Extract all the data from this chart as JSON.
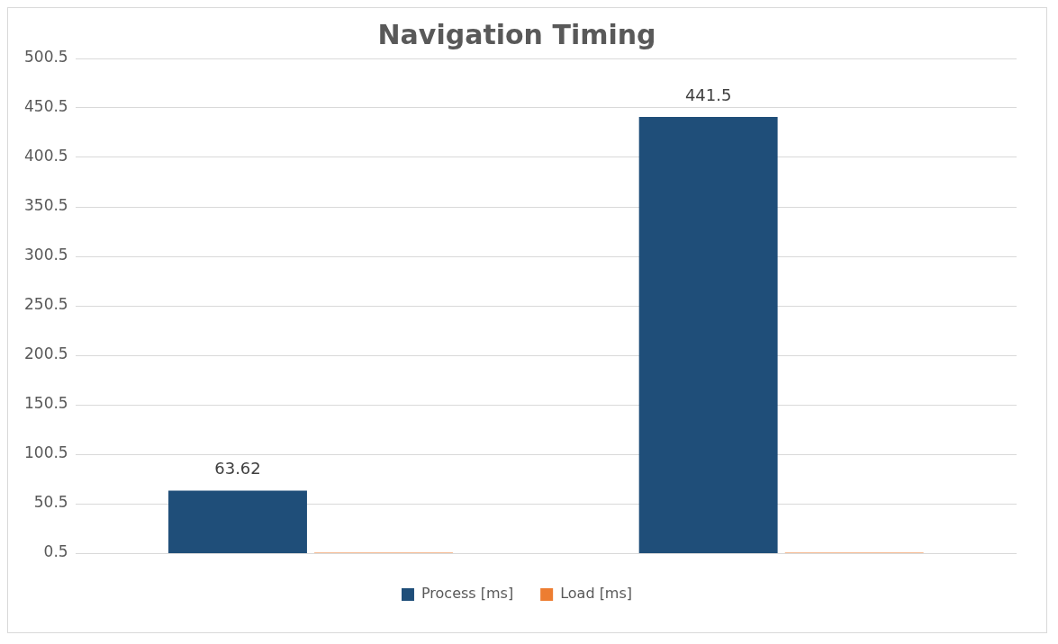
{
  "chart_data": {
    "type": "bar",
    "title": "Navigation Timing",
    "categories": [
      null,
      null
    ],
    "series": [
      {
        "name": "Process [ms]",
        "color": "#1f4e79",
        "values": [
          63.62,
          441.5
        ],
        "value_labels": [
          "63.62",
          "441.5"
        ]
      },
      {
        "name": "Load [ms]",
        "color": "#ed7d31",
        "values": [
          1,
          1
        ]
      }
    ],
    "ylim": [
      0.5,
      500.5
    ],
    "yticks": [
      0.5,
      50.5,
      100.5,
      150.5,
      200.5,
      250.5,
      300.5,
      350.5,
      400.5,
      450.5,
      500.5
    ],
    "grid": "y",
    "legend": "bottom"
  }
}
